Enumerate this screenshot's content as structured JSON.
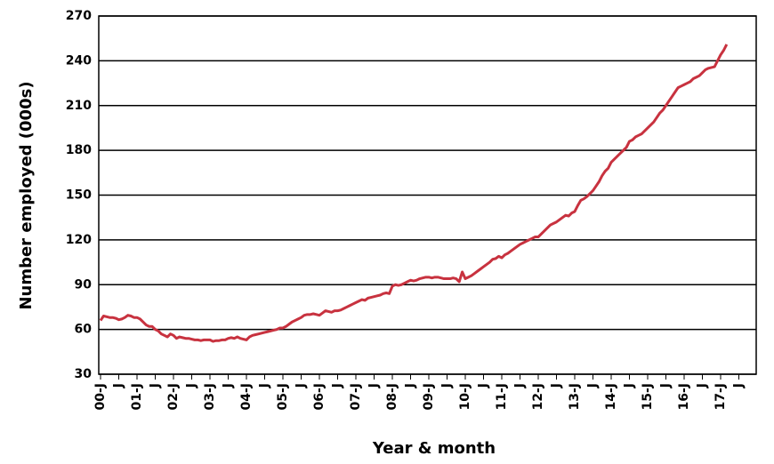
{
  "chart_data": {
    "type": "line",
    "xlabel": "Year & month",
    "ylabel": "Number employed (000s)",
    "categories": [
      "00-J",
      null,
      null,
      null,
      null,
      null,
      "J",
      null,
      null,
      null,
      null,
      null,
      "01-J",
      null,
      null,
      null,
      null,
      null,
      "J",
      null,
      null,
      null,
      null,
      null,
      "02-J",
      null,
      null,
      null,
      null,
      null,
      "J",
      null,
      null,
      null,
      null,
      null,
      "03-J",
      null,
      null,
      null,
      null,
      null,
      "J",
      null,
      null,
      null,
      null,
      null,
      "04-J",
      null,
      null,
      null,
      null,
      null,
      "J",
      null,
      null,
      null,
      null,
      null,
      "05-J",
      null,
      null,
      null,
      null,
      null,
      "J",
      null,
      null,
      null,
      null,
      null,
      "06-J",
      null,
      null,
      null,
      null,
      null,
      "J",
      null,
      null,
      null,
      null,
      null,
      "07-J",
      null,
      null,
      null,
      null,
      null,
      "J",
      null,
      null,
      null,
      null,
      null,
      "08-J",
      null,
      null,
      null,
      null,
      null,
      "J",
      null,
      null,
      null,
      null,
      null,
      "09-J",
      null,
      null,
      null,
      null,
      null,
      "J",
      null,
      null,
      null,
      null,
      null,
      "10-J",
      null,
      null,
      null,
      null,
      null,
      "J",
      null,
      null,
      null,
      null,
      null,
      "11-J",
      null,
      null,
      null,
      null,
      null,
      "J",
      null,
      null,
      null,
      null,
      null,
      "12-J",
      null,
      null,
      null,
      null,
      null,
      "J",
      null,
      null,
      null,
      null,
      null,
      "13-J",
      null,
      null,
      null,
      null,
      null,
      "J",
      null,
      null,
      null,
      null,
      null,
      "14-J",
      null,
      null,
      null,
      null,
      null,
      "J",
      null,
      null,
      null,
      null,
      null,
      "15-J",
      null,
      null,
      null,
      null,
      null,
      "J",
      null,
      null,
      null,
      null,
      null,
      "16-J",
      null,
      null,
      null,
      null,
      null,
      "J",
      null,
      null,
      null,
      null,
      null,
      "17-J",
      null,
      null,
      null,
      null,
      null,
      "J"
    ],
    "series": [
      {
        "color": "#c8323f",
        "values": [
          66,
          69,
          68.5,
          68,
          68,
          67.5,
          66.5,
          67,
          68,
          69.5,
          69,
          68,
          68,
          67,
          65,
          63,
          62,
          62,
          60,
          59,
          57,
          56,
          55,
          57,
          56,
          54,
          55,
          54.5,
          54,
          54,
          53.5,
          53,
          53,
          52.5,
          53,
          53,
          53,
          52,
          52.5,
          52.5,
          53,
          53,
          54,
          54.5,
          54,
          55,
          54,
          53.5,
          53,
          55,
          56,
          56.5,
          57,
          57.5,
          58,
          58.5,
          59,
          59.5,
          60,
          61,
          61,
          62,
          63.5,
          65,
          66,
          67,
          68,
          69.5,
          70,
          70,
          70.5,
          70,
          69.5,
          71,
          72.5,
          72,
          71.5,
          72.5,
          72.5,
          73,
          74,
          75,
          76,
          77,
          78,
          79,
          80,
          79.5,
          81,
          81.5,
          82,
          82.5,
          83,
          84,
          84.5,
          84,
          89,
          90,
          89.5,
          90,
          91,
          92,
          93,
          92.5,
          93,
          94,
          94.5,
          95,
          95,
          94.5,
          95,
          95,
          94.5,
          94,
          94,
          94,
          94.5,
          94,
          92,
          98.5,
          94,
          95,
          96,
          97.5,
          99,
          100.5,
          102,
          103.5,
          105,
          107,
          107.5,
          109,
          108,
          110,
          111,
          112.5,
          114,
          115.5,
          117,
          118,
          119,
          120,
          121,
          122,
          122,
          124,
          126,
          128,
          130,
          131,
          132,
          133.5,
          135,
          136.5,
          136,
          138,
          139,
          143,
          146.5,
          147.5,
          149,
          151,
          153,
          156,
          159,
          163,
          166,
          168,
          172,
          174,
          176,
          178,
          180,
          182,
          186,
          187,
          189,
          190,
          191,
          193,
          195,
          197,
          199,
          202,
          205,
          207,
          210,
          213,
          216,
          219,
          222,
          223,
          224,
          225,
          226,
          228,
          229,
          230,
          232,
          234,
          235,
          235.5,
          236,
          240,
          244,
          247,
          251,
          null,
          null,
          null,
          null
        ]
      }
    ],
    "ylim": [
      30,
      270
    ],
    "yticks": [
      30,
      60,
      90,
      120,
      150,
      180,
      210,
      240,
      270
    ],
    "grid": true
  }
}
